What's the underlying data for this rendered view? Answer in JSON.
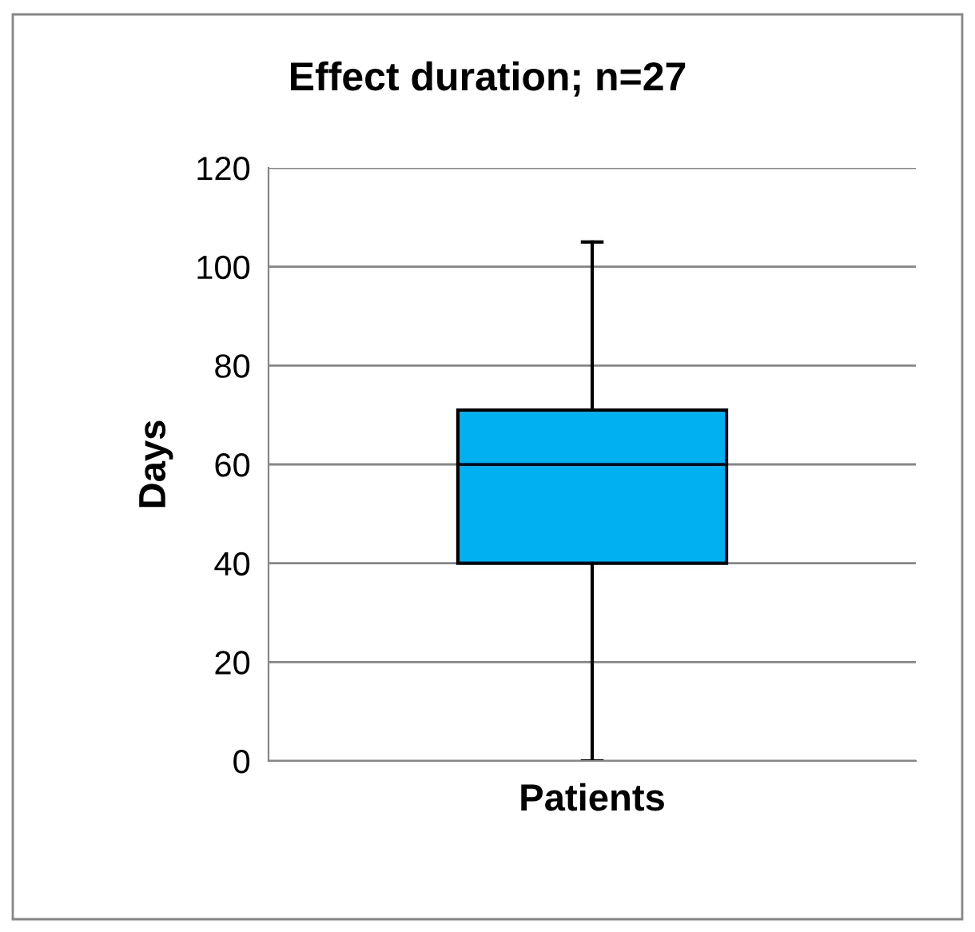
{
  "chart_data": {
    "type": "box",
    "title": "Effect duration; n=27",
    "ylabel": "Days",
    "xlabel": "Patients",
    "categories": [
      null
    ],
    "series": [
      {
        "color": "#00b0f0",
        "boxes": [
          {
            "low": 0,
            "q1": 40,
            "median": 60,
            "q3": 71,
            "high": 105
          }
        ]
      }
    ],
    "ylim": [
      0,
      120
    ],
    "yticks": [
      0,
      20,
      40,
      60,
      80,
      100,
      120
    ],
    "grid": "y",
    "legend": false
  }
}
